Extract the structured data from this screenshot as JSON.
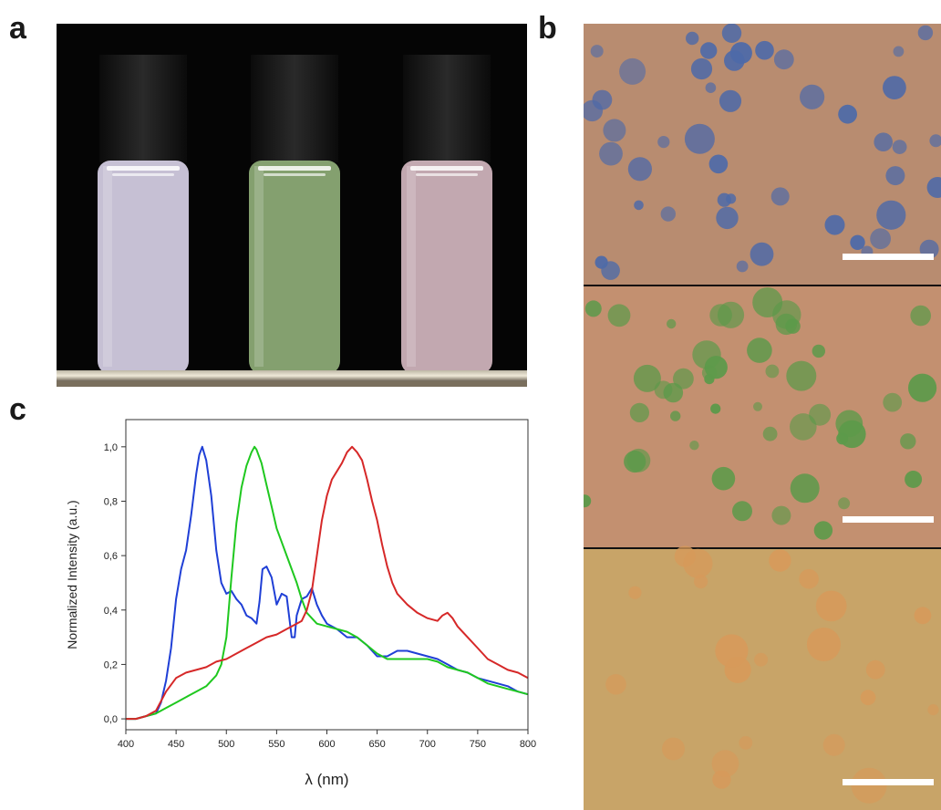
{
  "figure": {
    "panel_labels": [
      "a",
      "b",
      "c"
    ]
  },
  "panel_a": {
    "vial_colors": [
      "#d7d0e6",
      "#8fae78",
      "#d2b6bf"
    ]
  },
  "panel_b": {
    "image_colors": [
      "#b88c70",
      "#c39070",
      "#c8a468"
    ],
    "particle_colors": [
      "#4e6aa8",
      "#5c9a4a",
      "#d79a5a"
    ]
  },
  "chart_data": {
    "type": "line",
    "xlabel": "λ (nm)",
    "ylabel": "Normalized Intensity (a.u.)",
    "xlim": [
      400,
      800
    ],
    "ylim": [
      -0.04,
      1.1
    ],
    "xticks": [
      "400",
      "450",
      "500",
      "550",
      "600",
      "650",
      "700",
      "750",
      "800"
    ],
    "yticks": [
      "0,0",
      "0,2",
      "0,4",
      "0,6",
      "0,8",
      "1,0"
    ],
    "grid": false,
    "series": [
      {
        "color": "#1f3fd6",
        "x": [
          400,
          410,
          420,
          430,
          435,
          440,
          445,
          450,
          455,
          460,
          465,
          470,
          473,
          476,
          480,
          485,
          490,
          495,
          500,
          505,
          510,
          515,
          520,
          525,
          530,
          533,
          536,
          540,
          545,
          550,
          555,
          560,
          565,
          568,
          570,
          575,
          580,
          585,
          590,
          595,
          600,
          610,
          620,
          630,
          640,
          650,
          660,
          670,
          680,
          690,
          700,
          710,
          720,
          730,
          740,
          750,
          760,
          770,
          780,
          790,
          800
        ],
        "values": [
          0.0,
          0.0,
          0.01,
          0.02,
          0.06,
          0.14,
          0.26,
          0.44,
          0.55,
          0.62,
          0.75,
          0.9,
          0.97,
          1.0,
          0.95,
          0.82,
          0.62,
          0.5,
          0.46,
          0.47,
          0.44,
          0.42,
          0.38,
          0.37,
          0.35,
          0.43,
          0.55,
          0.56,
          0.52,
          0.42,
          0.46,
          0.45,
          0.3,
          0.3,
          0.38,
          0.44,
          0.45,
          0.48,
          0.42,
          0.38,
          0.35,
          0.33,
          0.3,
          0.3,
          0.27,
          0.23,
          0.23,
          0.25,
          0.25,
          0.24,
          0.23,
          0.22,
          0.2,
          0.18,
          0.17,
          0.15,
          0.14,
          0.13,
          0.12,
          0.1,
          0.09
        ]
      },
      {
        "color": "#1fc81f",
        "x": [
          400,
          410,
          420,
          430,
          440,
          450,
          460,
          470,
          480,
          490,
          495,
          500,
          505,
          510,
          515,
          520,
          525,
          528,
          530,
          535,
          540,
          545,
          550,
          555,
          560,
          565,
          570,
          575,
          580,
          590,
          600,
          610,
          620,
          630,
          640,
          650,
          660,
          670,
          680,
          690,
          700,
          710,
          720,
          730,
          740,
          750,
          760,
          770,
          780,
          790,
          800
        ],
        "values": [
          0.0,
          0.0,
          0.01,
          0.02,
          0.04,
          0.06,
          0.08,
          0.1,
          0.12,
          0.16,
          0.2,
          0.3,
          0.52,
          0.72,
          0.85,
          0.93,
          0.98,
          1.0,
          0.99,
          0.94,
          0.86,
          0.78,
          0.7,
          0.65,
          0.6,
          0.55,
          0.5,
          0.44,
          0.39,
          0.35,
          0.34,
          0.33,
          0.32,
          0.3,
          0.27,
          0.24,
          0.22,
          0.22,
          0.22,
          0.22,
          0.22,
          0.21,
          0.19,
          0.18,
          0.17,
          0.15,
          0.13,
          0.12,
          0.11,
          0.1,
          0.09
        ]
      },
      {
        "color": "#d62828",
        "x": [
          400,
          410,
          420,
          430,
          440,
          450,
          460,
          470,
          480,
          490,
          500,
          510,
          520,
          530,
          540,
          550,
          560,
          570,
          575,
          580,
          585,
          590,
          595,
          600,
          605,
          610,
          615,
          620,
          625,
          630,
          635,
          640,
          645,
          650,
          655,
          660,
          665,
          670,
          680,
          690,
          700,
          710,
          715,
          720,
          725,
          730,
          740,
          750,
          760,
          770,
          780,
          790,
          800
        ],
        "values": [
          0.0,
          0.0,
          0.01,
          0.03,
          0.1,
          0.15,
          0.17,
          0.18,
          0.19,
          0.21,
          0.22,
          0.24,
          0.26,
          0.28,
          0.3,
          0.31,
          0.33,
          0.35,
          0.36,
          0.4,
          0.47,
          0.6,
          0.73,
          0.82,
          0.88,
          0.91,
          0.94,
          0.98,
          1.0,
          0.98,
          0.95,
          0.88,
          0.8,
          0.73,
          0.64,
          0.56,
          0.5,
          0.46,
          0.42,
          0.39,
          0.37,
          0.36,
          0.38,
          0.39,
          0.37,
          0.34,
          0.3,
          0.26,
          0.22,
          0.2,
          0.18,
          0.17,
          0.15
        ]
      }
    ]
  }
}
